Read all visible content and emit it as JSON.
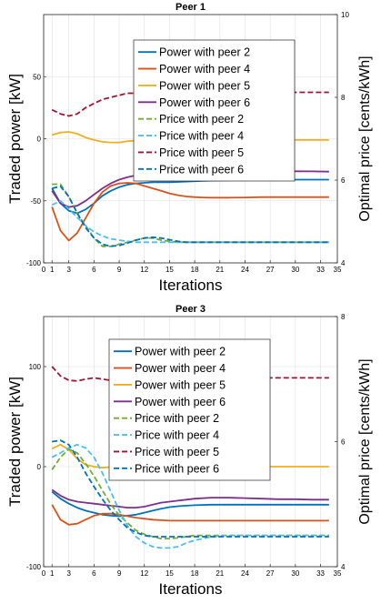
{
  "chart_data": [
    {
      "type": "line",
      "title": "Peer 1",
      "xlabel": "Iterations",
      "ylabel": "Traded power [kW]",
      "y2label": "Optimal price [cents/kWh]",
      "xlim": [
        0,
        35
      ],
      "ylim": [
        -100,
        100
      ],
      "y2lim": [
        4,
        10
      ],
      "xticks": [
        0,
        1,
        3,
        6,
        9,
        12,
        15,
        18,
        21,
        24,
        27,
        30,
        33,
        35
      ],
      "yticks": [
        -100,
        -50,
        0,
        50
      ],
      "y2ticks": [
        4,
        6,
        8,
        10
      ],
      "grid": true,
      "legend_position": "inside-upper-center",
      "series": [
        {
          "name": "Power with peer 2",
          "axis": "left",
          "style": "solid",
          "color": "#0072BD",
          "x": [
            1,
            2,
            3,
            4,
            5,
            6,
            7,
            8,
            9,
            10,
            11,
            12,
            13,
            14,
            15,
            16,
            17,
            18,
            19,
            20,
            22,
            24,
            26,
            28,
            30,
            32,
            34
          ],
          "y": [
            -40,
            -52,
            -58,
            -60,
            -57,
            -52,
            -46,
            -42,
            -39,
            -37,
            -36,
            -35.5,
            -35,
            -35,
            -35,
            -34.8,
            -34.5,
            -34.2,
            -34,
            -33.8,
            -33.5,
            -33.2,
            -33,
            -33,
            -33,
            -33,
            -33
          ]
        },
        {
          "name": "Power with peer 4",
          "axis": "left",
          "style": "solid",
          "color": "#D95319",
          "x": [
            1,
            2,
            3,
            4,
            5,
            6,
            7,
            8,
            9,
            10,
            11,
            12,
            13,
            14,
            15,
            16,
            17,
            18,
            19,
            20,
            22,
            24,
            26,
            28,
            30,
            32,
            34
          ],
          "y": [
            -55,
            -74,
            -82,
            -76,
            -64,
            -52,
            -43,
            -38,
            -36,
            -35.5,
            -36,
            -38,
            -40,
            -42,
            -44,
            -45.5,
            -46.5,
            -47,
            -47.3,
            -47.5,
            -47.5,
            -47.3,
            -47,
            -47,
            -47,
            -47,
            -47
          ]
        },
        {
          "name": "Power with peer 5",
          "axis": "left",
          "style": "solid",
          "color": "#EDB120",
          "x": [
            1,
            2,
            3,
            4,
            5,
            6,
            7,
            8,
            9,
            10,
            11,
            12,
            13,
            14,
            15,
            16,
            17,
            18,
            20,
            22,
            24,
            26,
            28,
            30,
            32,
            34
          ],
          "y": [
            3,
            5,
            5.5,
            4,
            1,
            -1,
            -2.5,
            -3,
            -3,
            -2,
            -1.5,
            -1,
            -1,
            -1,
            -1,
            -1,
            -1,
            -1,
            -1,
            -1,
            -1,
            -1,
            -1,
            -1,
            -1,
            -1
          ]
        },
        {
          "name": "Power with peer 6",
          "axis": "left",
          "style": "solid",
          "color": "#7E2F8E",
          "x": [
            1,
            2,
            3,
            4,
            5,
            6,
            7,
            8,
            9,
            10,
            11,
            12,
            13,
            14,
            15,
            16,
            17,
            18,
            20,
            22,
            24,
            26,
            28,
            30,
            32,
            34
          ],
          "y": [
            -42,
            -52,
            -55,
            -54,
            -50,
            -45,
            -40,
            -36,
            -33,
            -31,
            -29.5,
            -28.5,
            -28,
            -28,
            -28,
            -28,
            -27.8,
            -27.5,
            -27,
            -26.5,
            -26.3,
            -26.2,
            -26.2,
            -26.2,
            -26.3,
            -26.5
          ]
        },
        {
          "name": "Price with peer 2",
          "axis": "right",
          "style": "dashed",
          "color": "#77AC30",
          "x": [
            1,
            2,
            3,
            4,
            5,
            6,
            7,
            8,
            9,
            10,
            11,
            12,
            13,
            14,
            15,
            16,
            17,
            18,
            20,
            22,
            24,
            26,
            28,
            30,
            32,
            34
          ],
          "y": [
            5.9,
            5.9,
            5.6,
            5.2,
            4.9,
            4.6,
            4.4,
            4.4,
            4.45,
            4.5,
            4.55,
            4.6,
            4.6,
            4.55,
            4.52,
            4.5,
            4.5,
            4.5,
            4.5,
            4.5,
            4.5,
            4.5,
            4.5,
            4.5,
            4.5,
            4.5
          ]
        },
        {
          "name": "Price with peer 4",
          "axis": "right",
          "style": "dashed",
          "color": "#4DBEEE",
          "x": [
            1,
            2,
            3,
            4,
            5,
            6,
            7,
            8,
            9,
            10,
            11,
            12,
            13,
            14,
            15,
            16,
            17,
            18,
            20,
            22,
            24,
            26,
            28,
            30,
            32,
            34
          ],
          "y": [
            5.4,
            5.5,
            5.3,
            5.1,
            4.9,
            4.75,
            4.65,
            4.58,
            4.55,
            4.52,
            4.5,
            4.5,
            4.5,
            4.5,
            4.5,
            4.5,
            4.5,
            4.5,
            4.5,
            4.5,
            4.5,
            4.5,
            4.5,
            4.5,
            4.5,
            4.5
          ]
        },
        {
          "name": "Price with peer 5",
          "axis": "right",
          "style": "dashed",
          "color": "#A2142F",
          "x": [
            1,
            2,
            3,
            4,
            5,
            6,
            7,
            8,
            9,
            10,
            11,
            12,
            13,
            14,
            15,
            16,
            18,
            20,
            22,
            24,
            26,
            28,
            30,
            32,
            34
          ],
          "y": [
            7.7,
            7.6,
            7.55,
            7.6,
            7.75,
            7.85,
            7.95,
            8.0,
            8.05,
            8.1,
            8.1,
            8.1,
            8.1,
            8.1,
            8.12,
            8.12,
            8.12,
            8.12,
            8.12,
            8.12,
            8.12,
            8.12,
            8.12,
            8.12,
            8.12
          ]
        },
        {
          "name": "Price with peer 6",
          "axis": "right",
          "style": "dashed",
          "color": "#0072BD",
          "x": [
            1,
            2,
            3,
            4,
            5,
            6,
            7,
            8,
            9,
            10,
            11,
            12,
            13,
            14,
            15,
            16,
            17,
            18,
            20,
            22,
            24,
            26,
            28,
            30,
            32,
            34
          ],
          "y": [
            5.8,
            5.85,
            5.6,
            5.2,
            4.85,
            4.6,
            4.45,
            4.4,
            4.42,
            4.48,
            4.55,
            4.6,
            4.62,
            4.6,
            4.56,
            4.52,
            4.5,
            4.5,
            4.5,
            4.5,
            4.5,
            4.5,
            4.5,
            4.5,
            4.5,
            4.5
          ]
        }
      ]
    },
    {
      "type": "line",
      "title": "Peer 3",
      "xlabel": "Iterations",
      "ylabel": "Traded power [kW]",
      "y2label": "Optimal price [cents/kWh]",
      "xlim": [
        0,
        35
      ],
      "ylim": [
        -100,
        150
      ],
      "y2lim": [
        4,
        8
      ],
      "xticks": [
        0,
        1,
        3,
        6,
        9,
        12,
        15,
        18,
        21,
        24,
        27,
        30,
        33,
        35
      ],
      "yticks": [
        -100,
        0,
        100
      ],
      "y2ticks": [
        4,
        6,
        8
      ],
      "grid": true,
      "legend_position": "inside-upper-center",
      "series": [
        {
          "name": "Power with peer 2",
          "axis": "left",
          "style": "solid",
          "color": "#0072BD",
          "x": [
            1,
            2,
            3,
            4,
            5,
            6,
            7,
            8,
            9,
            10,
            11,
            12,
            13,
            14,
            15,
            16,
            17,
            18,
            20,
            22,
            24,
            26,
            28,
            30,
            32,
            34
          ],
          "y": [
            -25,
            -32,
            -37,
            -41,
            -44,
            -46,
            -48,
            -49,
            -49.5,
            -49,
            -48,
            -46,
            -44,
            -42,
            -40.5,
            -39.5,
            -39,
            -38.5,
            -38,
            -38,
            -38,
            -38,
            -38,
            -38,
            -38,
            -38
          ]
        },
        {
          "name": "Power with peer 4",
          "axis": "left",
          "style": "solid",
          "color": "#D95319",
          "x": [
            1,
            2,
            3,
            4,
            5,
            6,
            7,
            8,
            9,
            10,
            11,
            12,
            13,
            14,
            15,
            16,
            17,
            18,
            20,
            22,
            24,
            26,
            28,
            30,
            32,
            34
          ],
          "y": [
            -38,
            -53,
            -58,
            -57,
            -53,
            -49,
            -47,
            -47,
            -48,
            -49.5,
            -51,
            -52,
            -53,
            -53.5,
            -54,
            -54,
            -54,
            -54,
            -54,
            -54,
            -54,
            -54,
            -54,
            -54,
            -54,
            -54
          ]
        },
        {
          "name": "Power with peer 5",
          "axis": "left",
          "style": "solid",
          "color": "#EDB120",
          "x": [
            1,
            2,
            3,
            4,
            5,
            6,
            7,
            8,
            9,
            10,
            12,
            14,
            16,
            18,
            20,
            22,
            24,
            26,
            28,
            30,
            32,
            34
          ],
          "y": [
            18,
            22,
            17,
            8,
            2,
            0,
            -1,
            -0.5,
            0,
            0,
            0,
            0,
            0,
            0,
            0,
            0,
            0,
            0,
            0,
            0,
            0,
            0
          ]
        },
        {
          "name": "Power with peer 6",
          "axis": "left",
          "style": "solid",
          "color": "#7E2F8E",
          "x": [
            1,
            2,
            3,
            4,
            5,
            6,
            7,
            8,
            9,
            10,
            11,
            12,
            13,
            14,
            15,
            16,
            17,
            18,
            20,
            22,
            24,
            26,
            28,
            30,
            32,
            34
          ],
          "y": [
            -23,
            -29,
            -33,
            -35,
            -36,
            -37,
            -38,
            -39,
            -40,
            -41,
            -41,
            -40,
            -38,
            -36,
            -35,
            -34,
            -33,
            -32,
            -31,
            -31,
            -31.5,
            -32,
            -32.5,
            -32.5,
            -33,
            -33
          ]
        },
        {
          "name": "Price with peer 2",
          "axis": "right",
          "style": "dashed",
          "color": "#77AC30",
          "x": [
            1,
            2,
            3,
            4,
            5,
            6,
            7,
            8,
            9,
            10,
            11,
            12,
            13,
            14,
            15,
            16,
            17,
            18,
            20,
            22,
            24,
            26,
            28,
            30,
            32,
            34
          ],
          "y": [
            5.55,
            5.75,
            5.88,
            5.82,
            5.65,
            5.45,
            5.22,
            5.0,
            4.82,
            4.7,
            4.58,
            4.52,
            4.48,
            4.45,
            4.45,
            4.46,
            4.48,
            4.5,
            4.5,
            4.5,
            4.5,
            4.5,
            4.5,
            4.5,
            4.5,
            4.5
          ]
        },
        {
          "name": "Price with peer 4",
          "axis": "right",
          "style": "dashed",
          "color": "#4DBEEE",
          "x": [
            1,
            2,
            3,
            4,
            5,
            6,
            7,
            8,
            9,
            10,
            11,
            12,
            13,
            14,
            15,
            16,
            17,
            18,
            20,
            22,
            24,
            26,
            28,
            30,
            32,
            34
          ],
          "y": [
            5.75,
            5.82,
            5.9,
            5.95,
            5.9,
            5.75,
            5.5,
            5.2,
            4.9,
            4.65,
            4.48,
            4.38,
            4.32,
            4.3,
            4.3,
            4.32,
            4.38,
            4.42,
            4.48,
            4.5,
            4.5,
            4.5,
            4.5,
            4.5,
            4.5,
            4.5
          ]
        },
        {
          "name": "Price with peer 5",
          "axis": "right",
          "style": "dashed",
          "color": "#A2142F",
          "x": [
            1,
            2,
            3,
            4,
            5,
            6,
            7,
            8,
            9,
            10,
            12,
            14,
            16,
            18,
            20,
            22,
            24,
            26,
            28,
            30,
            32,
            34
          ],
          "y": [
            7.2,
            7.05,
            6.98,
            6.97,
            7.0,
            7.02,
            7.0,
            6.98,
            6.98,
            7.0,
            7.02,
            7.02,
            7.02,
            7.02,
            7.02,
            7.02,
            7.02,
            7.02,
            7.02,
            7.02,
            7.02,
            7.02
          ]
        },
        {
          "name": "Price with peer 6",
          "axis": "right",
          "style": "dashed",
          "color": "#0072BD",
          "x": [
            1,
            2,
            3,
            4,
            5,
            6,
            7,
            8,
            9,
            10,
            11,
            12,
            13,
            14,
            15,
            16,
            17,
            18,
            20,
            22,
            24,
            26,
            28,
            30,
            32,
            34
          ],
          "y": [
            6.0,
            6.02,
            5.95,
            5.75,
            5.5,
            5.28,
            5.08,
            4.9,
            4.75,
            4.62,
            4.55,
            4.5,
            4.48,
            4.48,
            4.48,
            4.48,
            4.48,
            4.48,
            4.48,
            4.48,
            4.48,
            4.48,
            4.48,
            4.48,
            4.48,
            4.48
          ]
        }
      ]
    }
  ]
}
